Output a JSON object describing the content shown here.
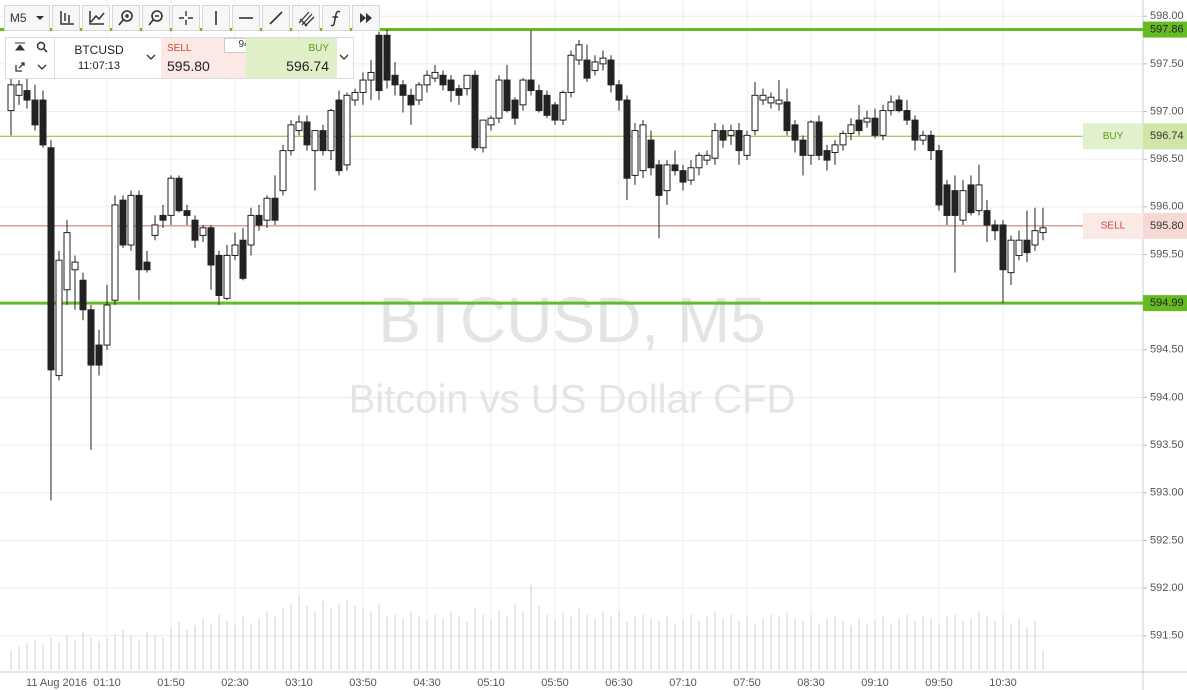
{
  "toolbar": {
    "timeframe": "M5"
  },
  "ticker": {
    "symbol": "BTCUSD",
    "time": "11:07:13",
    "spread": "94"
  },
  "chart_data": {
    "type": "candlestick",
    "title": "BTCUSD, M5",
    "subtitle": "Bitcoin vs US Dollar CFD",
    "date_label": "11 Aug 2016",
    "bull_color": "#ffffff",
    "bear_color": "#222222",
    "volume_color": "#cfcfcf",
    "grid": true,
    "ylim": [
      591.12,
      598.17
    ],
    "yticks": [
      {
        "value": 591.5,
        "label": "591.50"
      },
      {
        "value": 592,
        "label": "592.00"
      },
      {
        "value": 592.5,
        "label": "592.50"
      },
      {
        "value": 593,
        "label": "593.00"
      },
      {
        "value": 593.5,
        "label": "593.50"
      },
      {
        "value": 594,
        "label": "594.00"
      },
      {
        "value": 594.5,
        "label": "594.50"
      },
      {
        "value": 595,
        "label": "595.00"
      },
      {
        "value": 595.5,
        "label": "595.50"
      },
      {
        "value": 596,
        "label": "596.00"
      },
      {
        "value": 596.5,
        "label": "596.50"
      },
      {
        "value": 597,
        "label": "597.00"
      },
      {
        "value": 597.5,
        "label": "597.50"
      },
      {
        "value": 598,
        "label": "598.00"
      }
    ],
    "levels": [
      {
        "value": 597.86,
        "color": "#66bb22"
      },
      {
        "value": 594.99,
        "color": "#66bb22"
      }
    ],
    "buy": {
      "label": "BUY",
      "price": 596.74,
      "color": "#8ab833"
    },
    "sell": {
      "label": "SELL",
      "price": {
        "value": 595.8,
        "label": "595.80"
      },
      "color": "#c86e64"
    },
    "categories": [
      null,
      null,
      null,
      null,
      null,
      null,
      null,
      null,
      null,
      null,
      null,
      null,
      "01:10",
      null,
      null,
      null,
      null,
      null,
      null,
      null,
      "01:50",
      null,
      null,
      null,
      null,
      null,
      null,
      null,
      "02:30",
      null,
      null,
      null,
      null,
      null,
      null,
      null,
      "03:10",
      null,
      null,
      null,
      null,
      null,
      null,
      null,
      "03:50",
      null,
      null,
      null,
      null,
      null,
      null,
      null,
      "04:30",
      null,
      null,
      null,
      null,
      null,
      null,
      null,
      "05:10",
      null,
      null,
      null,
      null,
      null,
      null,
      null,
      "05:50",
      null,
      null,
      null,
      null,
      null,
      null,
      null,
      "06:30",
      null,
      null,
      null,
      null,
      null,
      null,
      null,
      "07:10",
      null,
      null,
      null,
      null,
      null,
      null,
      null,
      "07:50",
      null,
      null,
      null,
      null,
      null,
      null,
      null,
      "08:30",
      null,
      null,
      null,
      null,
      null,
      null,
      null,
      "09:10",
      null,
      null,
      null,
      null,
      null,
      null,
      null,
      "09:50",
      null,
      null,
      null,
      null,
      null,
      null,
      null,
      "10:30",
      null,
      null,
      null,
      null,
      null
    ],
    "ohlc": [
      [
        597.01,
        597.38,
        596.75,
        597.28
      ],
      [
        597.17,
        597.33,
        597.07,
        597.28
      ],
      [
        597.22,
        597.35,
        597.03,
        597.12
      ],
      [
        597.12,
        597.28,
        596.8,
        596.86
      ],
      [
        597.12,
        597.22,
        596.62,
        596.65
      ],
      [
        596.62,
        596.7,
        592.92,
        594.29
      ],
      [
        594.23,
        595.54,
        594.18,
        595.44
      ],
      [
        595.13,
        595.86,
        594.97,
        595.73
      ],
      [
        595.34,
        595.49,
        594.92,
        595.42
      ],
      [
        595.23,
        595.31,
        594.81,
        594.92
      ],
      [
        594.92,
        594.97,
        593.45,
        594.34
      ],
      [
        594.55,
        594.71,
        594.23,
        594.34
      ],
      [
        594.55,
        595.18,
        594.5,
        594.97
      ],
      [
        595.02,
        596.12,
        594.97,
        596.02
      ],
      [
        596.07,
        596.12,
        595.57,
        595.6
      ],
      [
        595.6,
        596.17,
        595.54,
        596.12
      ],
      [
        596.12,
        596.17,
        595.02,
        595.34
      ],
      [
        595.42,
        595.54,
        595.31,
        595.34
      ],
      [
        595.7,
        595.91,
        595.65,
        595.81
      ],
      [
        595.91,
        596.02,
        595.78,
        595.86
      ],
      [
        595.91,
        596.33,
        595.81,
        596.3
      ],
      [
        596.3,
        596.33,
        595.94,
        595.96
      ],
      [
        595.96,
        596.02,
        595.81,
        595.91
      ],
      [
        595.86,
        595.91,
        595.57,
        595.65
      ],
      [
        595.7,
        595.81,
        595.63,
        595.78
      ],
      [
        595.78,
        595.81,
        595.13,
        595.39
      ],
      [
        595.49,
        595.54,
        594.97,
        595.07
      ],
      [
        595.04,
        595.6,
        595.02,
        595.49
      ],
      [
        595.49,
        595.73,
        595.44,
        595.6
      ],
      [
        595.65,
        595.78,
        595.23,
        595.25
      ],
      [
        595.6,
        595.99,
        595.49,
        595.91
      ],
      [
        595.91,
        596.02,
        595.75,
        595.81
      ],
      [
        595.86,
        596.12,
        595.78,
        596.09
      ],
      [
        596.09,
        596.33,
        595.81,
        595.86
      ],
      [
        596.17,
        596.65,
        596.12,
        596.59
      ],
      [
        596.59,
        596.91,
        596.54,
        596.86
      ],
      [
        596.8,
        596.96,
        596.75,
        596.89
      ],
      [
        596.89,
        596.96,
        596.59,
        596.65
      ],
      [
        596.59,
        596.75,
        596.17,
        596.8
      ],
      [
        596.8,
        596.86,
        596.54,
        596.59
      ],
      [
        596.59,
        597.03,
        596.49,
        597.01
      ],
      [
        597.12,
        597.22,
        596.33,
        596.38
      ],
      [
        596.44,
        597.2,
        596.38,
        597.17
      ],
      [
        597.12,
        597.24,
        597.06,
        597.2
      ],
      [
        597.2,
        597.41,
        597.07,
        597.33
      ],
      [
        597.33,
        597.54,
        597.12,
        597.41
      ],
      [
        597.8,
        597.84,
        597.12,
        597.22
      ],
      [
        597.8,
        597.86,
        597.24,
        597.33
      ],
      [
        597.38,
        597.52,
        597.17,
        597.28
      ],
      [
        597.28,
        597.33,
        596.99,
        597.17
      ],
      [
        597.17,
        597.24,
        596.86,
        597.07
      ],
      [
        597.12,
        597.31,
        597.07,
        597.28
      ],
      [
        597.28,
        597.43,
        597.2,
        597.38
      ],
      [
        597.35,
        597.49,
        597.31,
        597.41
      ],
      [
        597.38,
        597.43,
        597.22,
        597.28
      ],
      [
        597.33,
        597.38,
        597.1,
        597.22
      ],
      [
        597.24,
        597.28,
        597.07,
        597.17
      ],
      [
        597.24,
        597.38,
        597.17,
        597.38
      ],
      [
        597.38,
        597.43,
        596.59,
        596.62
      ],
      [
        596.62,
        596.91,
        596.57,
        596.91
      ],
      [
        596.86,
        596.96,
        596.8,
        596.93
      ],
      [
        596.93,
        597.38,
        596.88,
        597.33
      ],
      [
        597.33,
        597.49,
        596.99,
        597.01
      ],
      [
        597.12,
        597.15,
        596.86,
        596.93
      ],
      [
        597.07,
        597.35,
        597.01,
        597.33
      ],
      [
        597.33,
        597.85,
        597.17,
        597.22
      ],
      [
        597.22,
        597.28,
        596.99,
        597.01
      ],
      [
        597.17,
        597.22,
        596.93,
        596.96
      ],
      [
        597.07,
        597.1,
        596.86,
        596.91
      ],
      [
        596.91,
        597.22,
        596.86,
        597.2
      ],
      [
        597.2,
        597.64,
        597.15,
        597.59
      ],
      [
        597.54,
        597.75,
        597.49,
        597.7
      ],
      [
        597.54,
        597.7,
        597.31,
        597.35
      ],
      [
        597.43,
        597.59,
        597.38,
        597.52
      ],
      [
        597.5,
        597.64,
        597.43,
        597.56
      ],
      [
        597.54,
        597.59,
        597.2,
        597.28
      ],
      [
        597.28,
        597.33,
        597.01,
        597.12
      ],
      [
        597.12,
        597.17,
        596.07,
        596.3
      ],
      [
        596.33,
        596.88,
        596.23,
        596.8
      ],
      [
        596.38,
        596.91,
        596.3,
        596.86
      ],
      [
        596.7,
        596.8,
        596.33,
        596.41
      ],
      [
        596.44,
        596.49,
        595.67,
        596.12
      ],
      [
        596.17,
        596.49,
        596.02,
        596.44
      ],
      [
        596.44,
        596.59,
        596.33,
        596.38
      ],
      [
        596.38,
        596.44,
        596.17,
        596.26
      ],
      [
        596.28,
        596.49,
        596.23,
        596.41
      ],
      [
        596.41,
        596.57,
        596.33,
        596.54
      ],
      [
        596.49,
        596.59,
        596.44,
        596.54
      ],
      [
        596.51,
        596.88,
        596.44,
        596.8
      ],
      [
        596.8,
        596.86,
        596.62,
        596.7
      ],
      [
        596.75,
        596.86,
        596.65,
        596.8
      ],
      [
        596.8,
        596.88,
        596.44,
        596.59
      ],
      [
        596.54,
        596.8,
        596.49,
        596.75
      ],
      [
        596.8,
        597.31,
        596.75,
        597.17
      ],
      [
        597.12,
        597.24,
        597.07,
        597.17
      ],
      [
        597.09,
        597.2,
        597.03,
        597.15
      ],
      [
        597.08,
        597.33,
        597.01,
        597.12
      ],
      [
        597.1,
        597.24,
        596.75,
        596.8
      ],
      [
        596.86,
        596.91,
        596.57,
        596.7
      ],
      [
        596.7,
        596.75,
        596.33,
        596.54
      ],
      [
        596.54,
        596.91,
        596.44,
        596.89
      ],
      [
        596.89,
        596.96,
        596.49,
        596.54
      ],
      [
        596.59,
        596.65,
        596.38,
        596.49
      ],
      [
        596.57,
        596.7,
        596.44,
        596.65
      ],
      [
        596.65,
        596.8,
        596.59,
        596.77
      ],
      [
        596.77,
        596.93,
        596.7,
        596.86
      ],
      [
        596.91,
        597.07,
        596.75,
        596.8
      ],
      [
        596.89,
        597.01,
        596.83,
        596.93
      ],
      [
        596.93,
        597.03,
        596.72,
        596.75
      ],
      [
        596.75,
        597.07,
        596.7,
        597.01
      ],
      [
        597.01,
        597.17,
        596.96,
        597.1
      ],
      [
        597.12,
        597.17,
        596.99,
        597.01
      ],
      [
        597.01,
        597.12,
        596.86,
        596.91
      ],
      [
        596.91,
        596.96,
        596.59,
        596.7
      ],
      [
        596.7,
        596.8,
        596.65,
        596.75
      ],
      [
        596.75,
        596.8,
        596.49,
        596.59
      ],
      [
        596.59,
        596.65,
        595.96,
        596.02
      ],
      [
        596.23,
        596.28,
        595.81,
        595.91
      ],
      [
        596.17,
        596.33,
        595.31,
        595.91
      ],
      [
        595.86,
        596.28,
        595.81,
        596.17
      ],
      [
        596.23,
        596.33,
        595.91,
        595.94
      ],
      [
        595.96,
        596.44,
        595.91,
        596.23
      ],
      [
        595.96,
        596.07,
        595.63,
        595.81
      ],
      [
        595.81,
        595.86,
        595.65,
        595.75
      ],
      [
        595.81,
        595.86,
        594.99,
        595.34
      ],
      [
        595.31,
        595.7,
        595.18,
        595.65
      ],
      [
        595.49,
        595.75,
        595.44,
        595.65
      ],
      [
        595.65,
        595.96,
        595.42,
        595.52
      ],
      [
        595.6,
        595.99,
        595.54,
        595.75
      ],
      [
        595.73,
        595.99,
        595.65,
        595.78
      ]
    ],
    "volume": [
      18,
      22,
      25,
      28,
      24,
      30,
      26,
      32,
      28,
      35,
      30,
      27,
      30,
      34,
      38,
      32,
      28,
      36,
      33,
      30,
      40,
      45,
      38,
      42,
      48,
      44,
      52,
      46,
      42,
      50,
      44,
      48,
      55,
      50,
      58,
      62,
      70,
      60,
      55,
      65,
      58,
      62,
      66,
      60,
      58,
      55,
      62,
      50,
      52,
      48,
      55,
      50,
      46,
      52,
      48,
      55,
      50,
      45,
      58,
      52,
      48,
      56,
      50,
      62,
      55,
      80,
      60,
      52,
      48,
      54,
      50,
      58,
      52,
      48,
      55,
      50,
      56,
      45,
      50,
      52,
      48,
      46,
      50,
      44,
      48,
      52,
      46,
      50,
      55,
      48,
      52,
      46,
      50,
      44,
      48,
      52,
      50,
      54,
      48,
      46,
      52,
      44,
      48,
      50,
      46,
      42,
      48,
      44,
      46,
      50,
      44,
      48,
      52,
      46,
      50,
      48,
      44,
      50,
      52,
      46,
      48,
      55,
      50,
      46,
      52,
      44,
      48,
      40,
      46,
      18
    ]
  }
}
